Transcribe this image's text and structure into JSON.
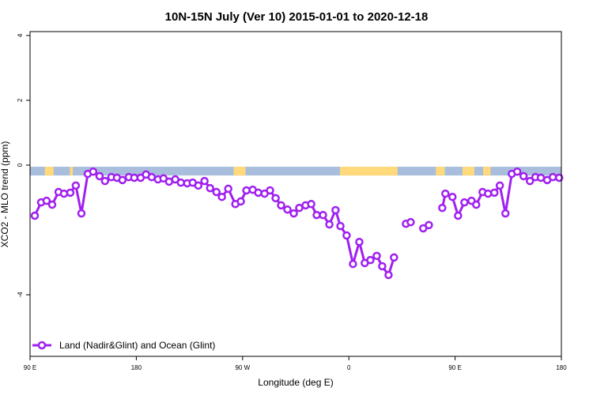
{
  "chart_data": {
    "type": "line",
    "title": "10N-15N July (Ver 10)   2015-01-01 to 2020-12-18",
    "xlabel": "Longitude (deg E)",
    "ylabel": "XCO2 - MLO trend (ppm)",
    "xlim": [
      90,
      450
    ],
    "ylim": [
      -5.9,
      4.12
    ],
    "x_ticks": [
      {
        "value": 90,
        "label": "90 E"
      },
      {
        "value": 180,
        "label": "180"
      },
      {
        "value": 270,
        "label": "90 W"
      },
      {
        "value": 360,
        "label": "0"
      },
      {
        "value": 450,
        "label": "90 E"
      },
      {
        "value": 540,
        "label": "180"
      }
    ],
    "y_ticks": [
      {
        "value": 4,
        "label": "4"
      },
      {
        "value": 2,
        "label": "2"
      },
      {
        "value": 0,
        "label": "0"
      },
      {
        "value": -4,
        "label": "-4"
      }
    ],
    "grid": false,
    "legend": {
      "position": "bottom-left",
      "entries": [
        "Land (Nadir&Glint) and Ocean (Glint)"
      ]
    },
    "colors": {
      "series": "#a020f0",
      "ocean_band": "#a8bedc",
      "land_band": "#ffd97a"
    },
    "surface_band": {
      "y_range": [
        -0.32,
        -0.05
      ],
      "land_lon_ranges": [
        [
          100,
          106
        ],
        [
          117,
          119
        ],
        [
          228,
          236
        ],
        [
          300,
          339
        ],
        [
          365,
          371
        ],
        [
          383,
          391
        ],
        [
          397,
          400
        ],
        [
          400,
          402
        ]
      ]
    },
    "series": [
      {
        "name": "Land (Nadir&Glint) and Ocean (Glint)",
        "points": [
          [
            93.2,
            -1.56
          ],
          [
            97.5,
            -1.15
          ],
          [
            101.2,
            -1.1
          ],
          [
            105.0,
            -1.22
          ],
          [
            109.3,
            -0.83
          ],
          [
            113.0,
            -0.88
          ],
          [
            117.3,
            -0.85
          ],
          [
            121.0,
            -0.63
          ],
          [
            124.8,
            -1.49
          ],
          [
            129.1,
            -0.27
          ],
          [
            132.8,
            -0.2
          ],
          [
            137.1,
            -0.34
          ],
          [
            140.8,
            -0.49
          ],
          [
            145.1,
            -0.37
          ],
          [
            148.9,
            -0.39
          ],
          [
            152.6,
            -0.46
          ],
          [
            156.9,
            -0.37
          ],
          [
            160.6,
            -0.39
          ],
          [
            164.9,
            -0.39
          ],
          [
            168.6,
            -0.29
          ],
          [
            172.4,
            -0.37
          ],
          [
            176.7,
            -0.44
          ],
          [
            180.4,
            -0.41
          ],
          [
            184.2,
            -0.51
          ],
          [
            188.4,
            -0.44
          ],
          [
            192.2,
            -0.54
          ],
          [
            196.5,
            -0.56
          ],
          [
            200.2,
            -0.54
          ],
          [
            204.0,
            -0.63
          ],
          [
            208.2,
            -0.49
          ],
          [
            212.0,
            -0.71
          ],
          [
            216.3,
            -0.83
          ],
          [
            220.0,
            -0.98
          ],
          [
            224.3,
            -0.73
          ],
          [
            229.1,
            -1.2
          ],
          [
            232.8,
            -1.12
          ],
          [
            236.6,
            -0.78
          ],
          [
            240.9,
            -0.76
          ],
          [
            244.6,
            -0.85
          ],
          [
            248.9,
            -0.88
          ],
          [
            252.6,
            -0.78
          ],
          [
            256.4,
            -1.02
          ],
          [
            260.1,
            -1.24
          ],
          [
            264.4,
            -1.37
          ],
          [
            268.7,
            -1.49
          ],
          [
            272.4,
            -1.32
          ],
          [
            276.7,
            -1.24
          ],
          [
            280.5,
            -1.2
          ],
          [
            284.2,
            -1.54
          ],
          [
            288.5,
            -1.54
          ],
          [
            292.8,
            -1.83
          ],
          [
            297.0,
            -1.39
          ],
          [
            300.3,
            -1.88
          ],
          [
            304.5,
            -2.17
          ],
          [
            308.8,
            -3.05
          ],
          [
            313.1,
            -2.37
          ],
          [
            316.8,
            -3.02
          ],
          [
            320.6,
            -2.93
          ],
          [
            324.9,
            -2.8
          ],
          [
            328.6,
            -3.12
          ],
          [
            332.9,
            -3.39
          ],
          [
            336.6,
            -2.85
          ],
          null,
          [
            344.7,
            -1.81
          ],
          [
            347.9,
            -1.76
          ],
          null,
          [
            356.4,
            -1.95
          ],
          [
            360.2,
            -1.85
          ],
          null,
          [
            369.3,
            -1.32
          ],
          [
            371.4,
            -0.88
          ],
          [
            376.2,
            -0.98
          ],
          [
            380.0,
            -1.56
          ],
          [
            384.3,
            -1.15
          ],
          [
            389.1,
            -1.1
          ],
          [
            392.3,
            -1.22
          ],
          [
            396.6,
            -0.83
          ],
          [
            400.3,
            -0.88
          ],
          [
            404.6,
            -0.85
          ],
          [
            408.3,
            -0.63
          ],
          [
            412.1,
            -1.49
          ],
          [
            416.4,
            -0.27
          ],
          [
            420.1,
            -0.2
          ],
          [
            424.4,
            -0.34
          ],
          [
            428.7,
            -0.49
          ],
          [
            432.4,
            -0.37
          ],
          [
            436.1,
            -0.39
          ],
          [
            440.4,
            -0.46
          ],
          [
            444.2,
            -0.37
          ],
          [
            448.5,
            -0.39
          ]
        ]
      }
    ]
  }
}
